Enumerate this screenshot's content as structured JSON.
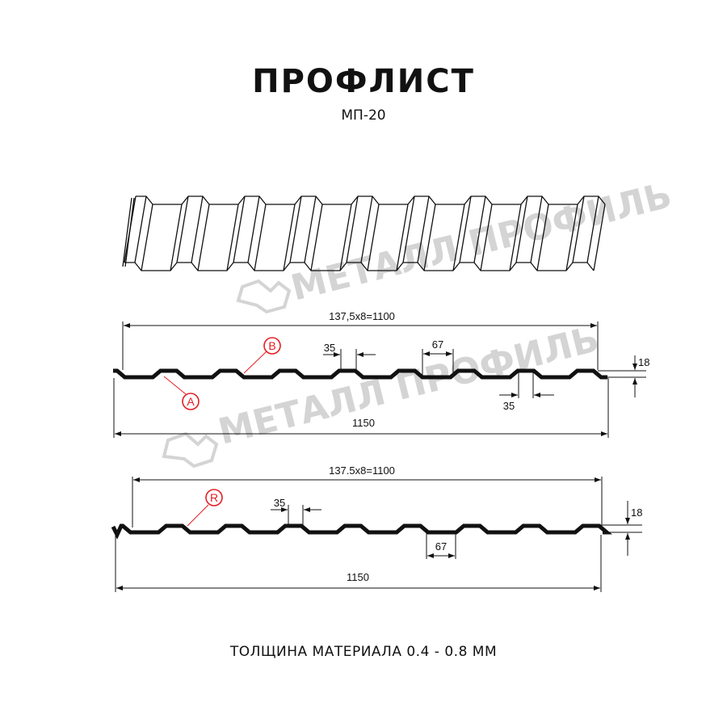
{
  "title": "ПРОФЛИСТ",
  "subtitle": "МП-20",
  "footer": "ТОЛЩИНА МАТЕРИАЛА 0.4 - 0.8 ММ",
  "watermark": "МЕТАЛЛ ПРОФИЛЬ",
  "colors": {
    "profile": "#111111",
    "callout": "#e31e24",
    "watermark": "#d4d4d4"
  },
  "section_a": {
    "overall_pitch": "137,5x8=1100",
    "full_width": "1150",
    "top_width": "35",
    "bottom_width": "67",
    "height": "18",
    "top_width_2": "35",
    "callouts": [
      "A",
      "B"
    ]
  },
  "section_r": {
    "overall_pitch": "137.5x8=1100",
    "full_width": "1150",
    "top_width": "35",
    "bottom_width": "67",
    "height": "18",
    "callouts": [
      "R"
    ]
  }
}
